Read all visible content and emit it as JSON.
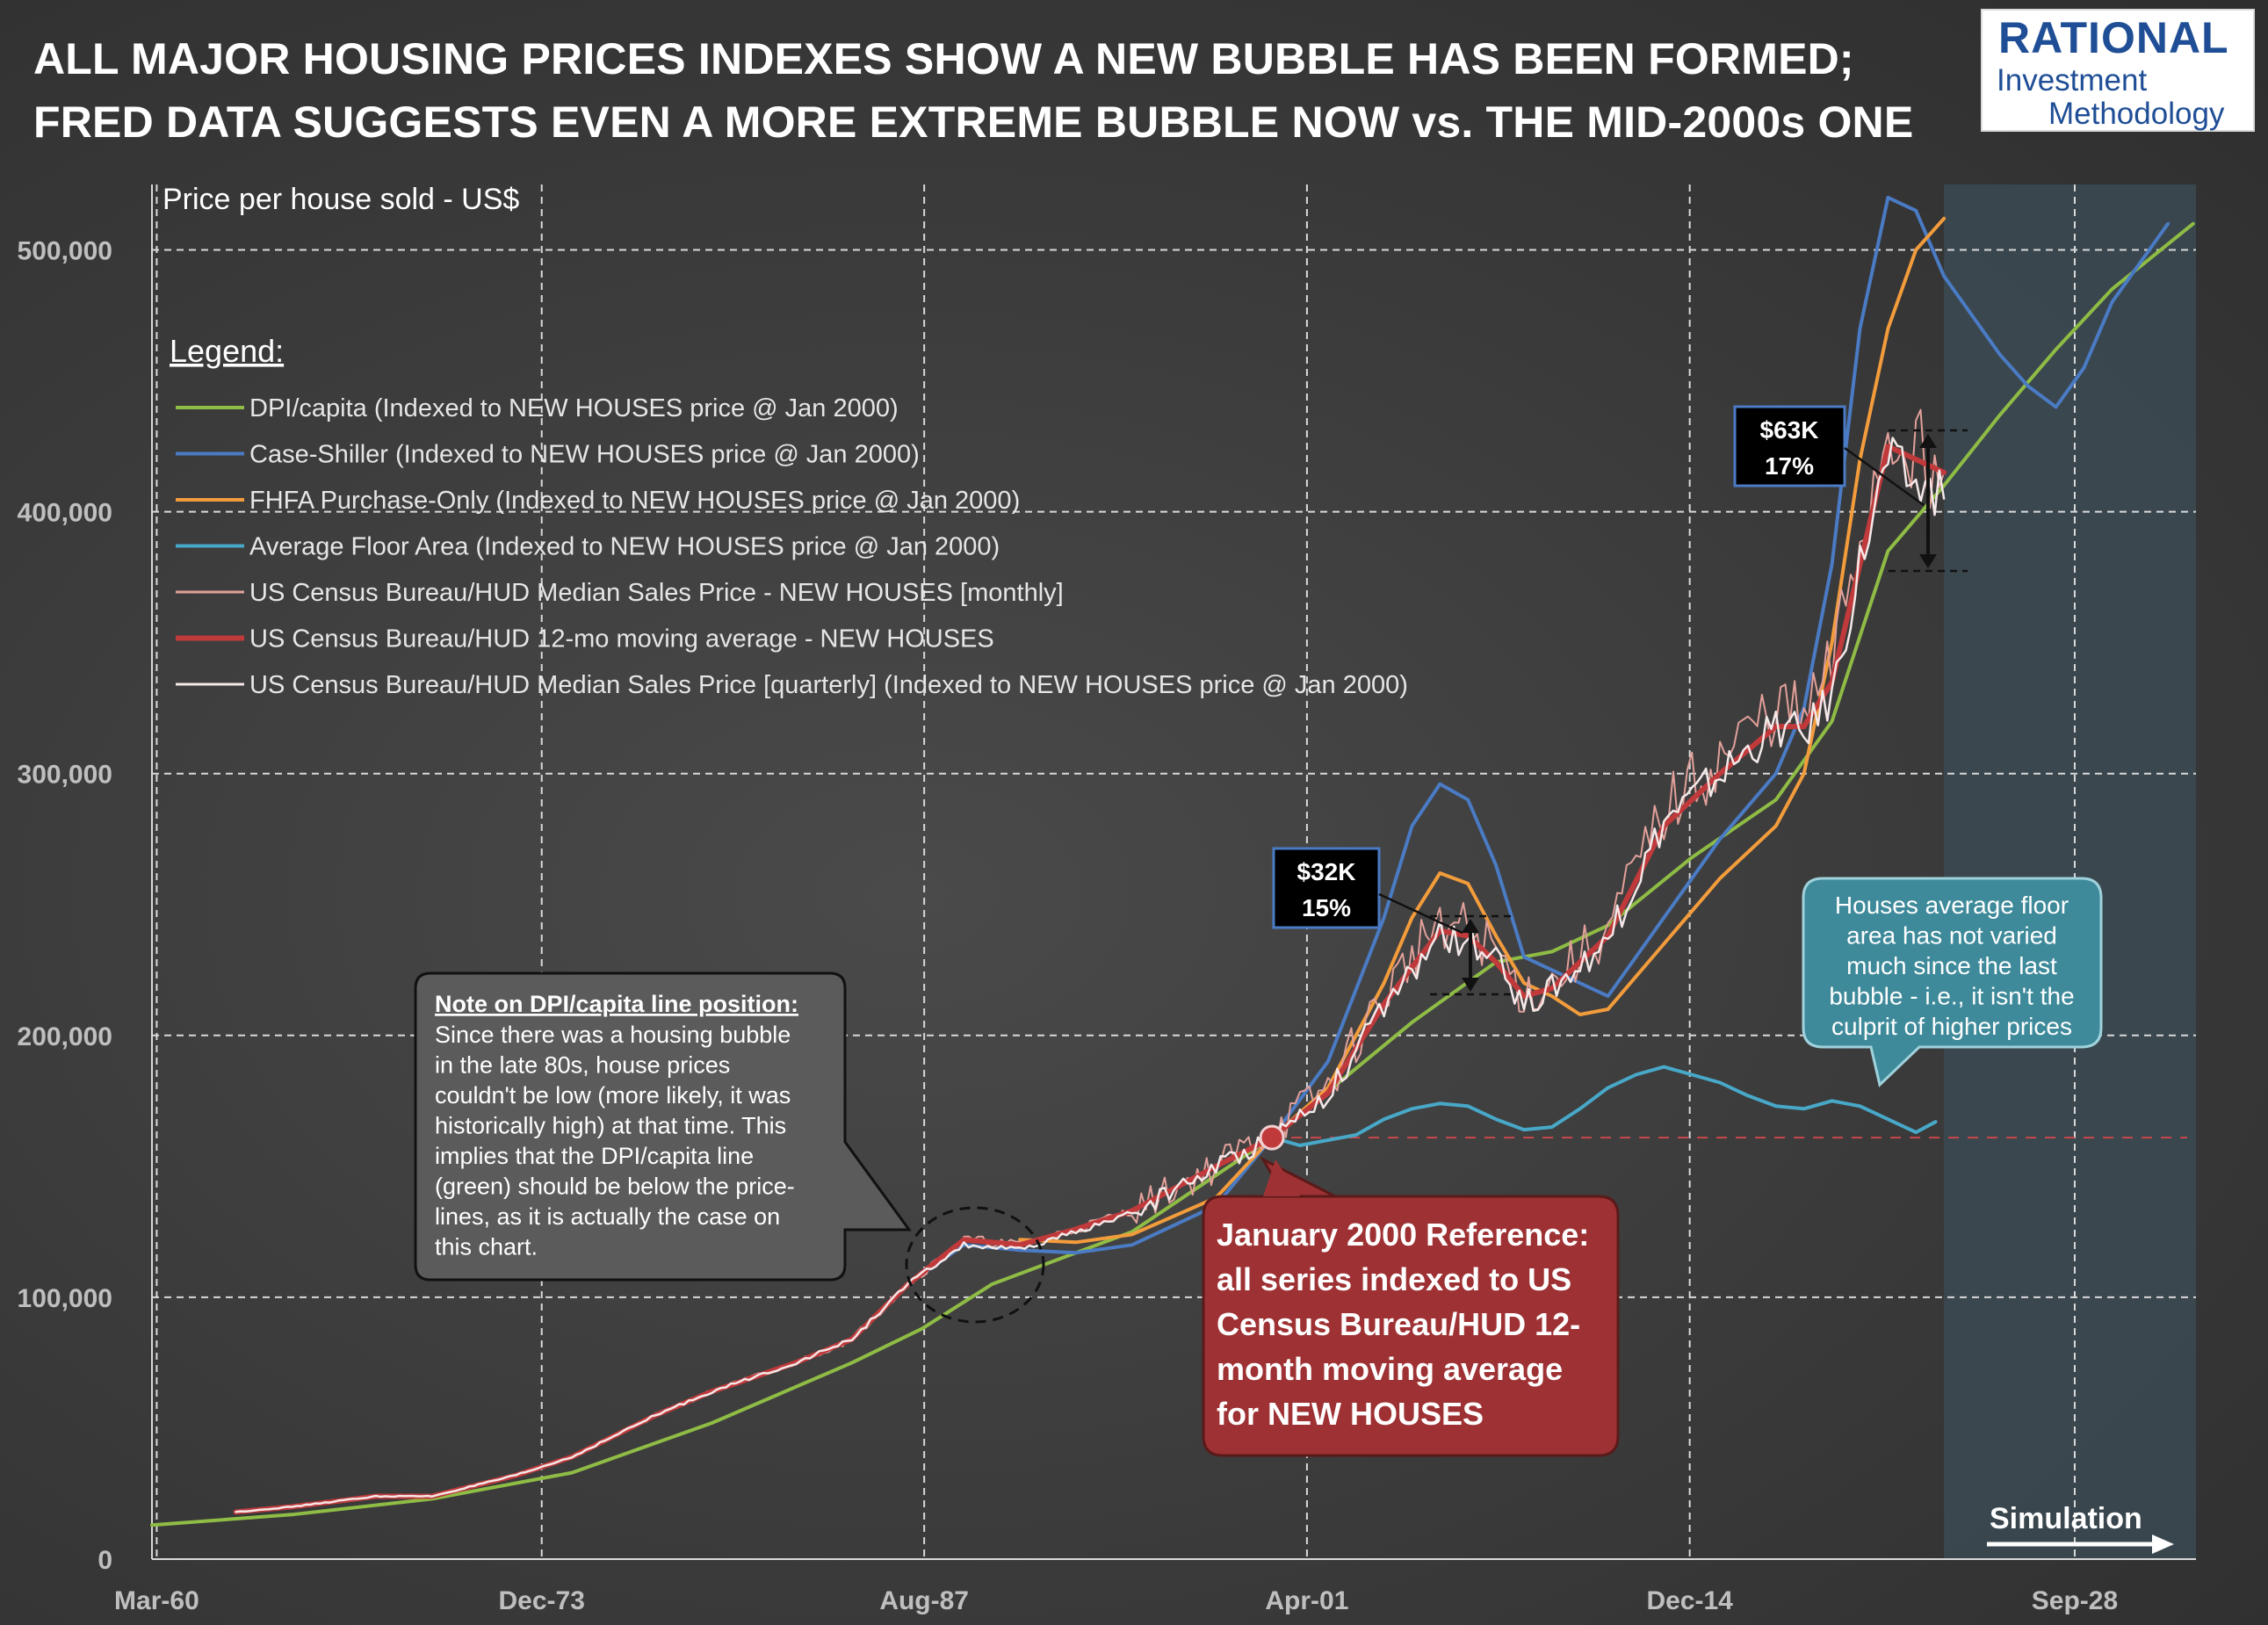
{
  "title": {
    "line1": "ALL MAJOR HOUSING PRICES INDEXES SHOW A NEW BUBBLE HAS BEEN FORMED;",
    "line2": "FRED DATA SUGGESTS EVEN A MORE EXTREME BUBBLE NOW vs. THE MID-2000s ONE"
  },
  "logo": {
    "line1": "RATIONAL",
    "line2": "Investment",
    "line3": "Methodology"
  },
  "legend": {
    "title": "Legend:",
    "items": [
      "DPI/capita (Indexed to NEW HOUSES price @ Jan 2000)",
      "Case-Shiller (Indexed to NEW HOUSES price @ Jan 2000)",
      "FHFA Purchase-Only (Indexed to NEW HOUSES price @ Jan 2000)",
      "Average Floor Area (Indexed to NEW HOUSES price @ Jan 2000)",
      "US Census Bureau/HUD Median Sales Price - NEW HOUSES [monthly]",
      "US Census Bureau/HUD 12-mo moving average - NEW HOUSES",
      "US Census Bureau/HUD Median Sales Price [quarterly] (Indexed to NEW HOUSES price @ Jan 2000)"
    ]
  },
  "annotations": {
    "note_title": "Note on DPI/capita line position:",
    "note_lines": [
      "Since there was a housing bubble",
      "in the late 80s, house prices",
      "couldn't be low (more likely, it was",
      "historically high) at that time. This",
      "implies that the DPI/capita line",
      "(green) should be below the price-",
      "lines, as it is actually the case on",
      "this chart."
    ],
    "reference_lines": [
      "January 2000 Reference:",
      "all series indexed to US",
      "Census Bureau/HUD 12-",
      "month moving average",
      "for NEW HOUSES"
    ],
    "floor_lines": [
      "Houses average floor",
      "area has not varied",
      "much since the last",
      "bubble - i.e., it isn't the",
      "culprit of higher prices"
    ],
    "bubble2000": {
      "amount": "$32K",
      "percent": "15%"
    },
    "bubble2020": {
      "amount": "$63K",
      "percent": "17%"
    },
    "simulation": "Simulation"
  },
  "chart_data": {
    "type": "line",
    "ylabel": "Price per house sold - US$",
    "xlabel": "",
    "ylim": [
      0,
      500000
    ],
    "y_ticks": [
      0,
      100000,
      200000,
      300000,
      400000,
      500000
    ],
    "y_tick_labels": [
      "0",
      "100,000",
      "200,000",
      "300,000",
      "400,000",
      "500,000"
    ],
    "x_range": [
      1960.0,
      2033.0
    ],
    "x_ticks": [
      1960.17,
      1973.92,
      1987.58,
      2001.25,
      2014.92,
      2028.67
    ],
    "x_tick_labels": [
      "Mar-60",
      "Dec-73",
      "Aug-87",
      "Apr-01",
      "Dec-14",
      "Sep-28"
    ],
    "grid": true,
    "legend_position": "top-left",
    "simulation_start": 2024.0,
    "reference_point": {
      "x": 2000.0,
      "y": 161000
    },
    "series": [
      {
        "name": "DPI/capita (Indexed to NEW HOUSES price @ Jan 2000)",
        "color": "#8fbc45",
        "width": 4,
        "x": [
          1960,
          1965,
          1970,
          1975,
          1980,
          1985,
          1987.5,
          1990,
          1995,
          2000,
          2005,
          2008,
          2010,
          2012,
          2015,
          2018,
          2020,
          2022,
          2024,
          2026,
          2028,
          2030,
          2032.9
        ],
        "y": [
          13000,
          17000,
          23000,
          33000,
          52000,
          75000,
          88000,
          105000,
          125000,
          161000,
          205000,
          228000,
          232000,
          242000,
          268000,
          290000,
          320000,
          385000,
          410000,
          437000,
          462000,
          485000,
          510000
        ]
      },
      {
        "name": "Case-Shiller (Indexed to NEW HOUSES price @ Jan 2000)",
        "color": "#4a7bc4",
        "width": 4,
        "x": [
          1987,
          1989,
          1991,
          1993,
          1995,
          1998,
          2000,
          2002,
          2004,
          2005,
          2006,
          2007,
          2008,
          2009,
          2010,
          2012,
          2014,
          2016,
          2018,
          2019,
          2020,
          2021,
          2022,
          2023,
          2024,
          2025,
          2026,
          2027,
          2028,
          2029,
          2030,
          2031,
          2032
        ],
        "y": [
          105000,
          120000,
          118000,
          117000,
          120000,
          135000,
          161000,
          190000,
          245000,
          280000,
          296000,
          290000,
          265000,
          230000,
          225000,
          215000,
          245000,
          275000,
          300000,
          325000,
          380000,
          470000,
          520000,
          515000,
          490000,
          475000,
          460000,
          448000,
          440000,
          455000,
          480000,
          495000,
          510000
        ]
      },
      {
        "name": "FHFA Purchase-Only (Indexed to NEW HOUSES price @ Jan 2000)",
        "color": "#f39c3c",
        "width": 4,
        "x": [
          1991,
          1993,
          1995,
          1998,
          2000,
          2002,
          2004,
          2005,
          2006,
          2007,
          2008,
          2009,
          2010,
          2011,
          2012,
          2014,
          2016,
          2018,
          2019,
          2020,
          2021,
          2022,
          2023,
          2024
        ],
        "y": [
          122000,
          121000,
          124000,
          138000,
          161000,
          180000,
          220000,
          245000,
          262000,
          258000,
          238000,
          220000,
          215000,
          208000,
          210000,
          235000,
          260000,
          280000,
          300000,
          350000,
          420000,
          470000,
          500000,
          512000
        ]
      },
      {
        "name": "Average Floor Area (Indexed to NEW HOUSES price @ Jan 2000)",
        "color": "#48a8c8",
        "width": 4,
        "x": [
          2000,
          2001,
          2002,
          2003,
          2004,
          2005,
          2006,
          2007,
          2008,
          2009,
          2010,
          2011,
          2012,
          2013,
          2014,
          2015,
          2016,
          2017,
          2018,
          2019,
          2020,
          2021,
          2022,
          2023,
          2023.7
        ],
        "y": [
          161000,
          158000,
          160000,
          162000,
          168000,
          172000,
          174000,
          173000,
          168000,
          164000,
          165000,
          172000,
          180000,
          185000,
          188000,
          185000,
          182000,
          177000,
          173000,
          172000,
          175000,
          173000,
          168000,
          163000,
          167000
        ]
      },
      {
        "name": "US Census Bureau/HUD Median Sales Price - NEW HOUSES [monthly]",
        "color": "#e2a09a",
        "width": 2,
        "noise": 0.045,
        "x": [
          1963,
          1965,
          1968,
          1970,
          1973,
          1975,
          1978,
          1980,
          1983,
          1985,
          1987,
          1989,
          1991,
          1993,
          1995,
          1998,
          2000,
          2002,
          2004,
          2006,
          2007,
          2008,
          2009,
          2010,
          2012,
          2014,
          2016,
          2018,
          2019,
          2020,
          2021,
          2022,
          2023,
          2024
        ],
        "y": [
          18000,
          20000,
          24000,
          24000,
          32000,
          39000,
          55000,
          64000,
          75000,
          84000,
          105000,
          122000,
          120000,
          126000,
          133000,
          150000,
          163000,
          180000,
          215000,
          245000,
          240000,
          232000,
          215000,
          220000,
          240000,
          285000,
          305000,
          325000,
          320000,
          340000,
          390000,
          430000,
          425000,
          415000
        ]
      },
      {
        "name": "US Census Bureau/HUD 12-mo moving average - NEW HOUSES",
        "color": "#c0393b",
        "width": 6,
        "x": [
          1963,
          1965,
          1968,
          1970,
          1973,
          1975,
          1978,
          1980,
          1983,
          1985,
          1987,
          1989,
          1991,
          1993,
          1995,
          1998,
          2000,
          2002,
          2004,
          2006,
          2007,
          2008,
          2009,
          2010,
          2012,
          2014,
          2016,
          2018,
          2019,
          2020,
          2021,
          2022,
          2023,
          2024
        ],
        "y": [
          18000,
          20000,
          24000,
          24000,
          32000,
          39000,
          55000,
          64000,
          75000,
          84000,
          105000,
          122000,
          120000,
          126000,
          133000,
          150000,
          161000,
          178000,
          212000,
          240000,
          238000,
          228000,
          215000,
          218000,
          238000,
          280000,
          300000,
          318000,
          318000,
          335000,
          380000,
          425000,
          420000,
          415000
        ]
      },
      {
        "name": "US Census Bureau/HUD Median Sales Price [quarterly] (Indexed to NEW HOUSES price @ Jan 2000)",
        "color": "#f4e8e8",
        "width": 2.5,
        "noise": 0.025,
        "x": [
          1963,
          1965,
          1968,
          1970,
          1973,
          1975,
          1978,
          1980,
          1983,
          1985,
          1987,
          1989,
          1991,
          1993,
          1995,
          1998,
          2000,
          2002,
          2004,
          2006,
          2007,
          2008,
          2009,
          2010,
          2012,
          2014,
          2016,
          2018,
          2019,
          2020,
          2021,
          2022,
          2023,
          2024
        ],
        "y": [
          18000,
          20000,
          24000,
          24000,
          32000,
          39000,
          55000,
          64000,
          75000,
          84000,
          105000,
          120000,
          118000,
          125000,
          132000,
          150000,
          161000,
          178000,
          210000,
          238000,
          235000,
          228000,
          212000,
          218000,
          236000,
          282000,
          300000,
          318000,
          315000,
          330000,
          380000,
          420000,
          410000,
          405000
        ]
      }
    ]
  }
}
